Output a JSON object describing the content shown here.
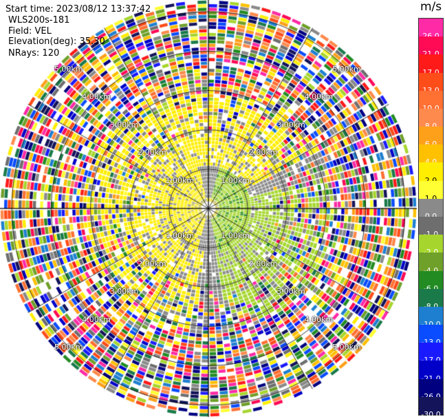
{
  "header": {
    "start_time": "Start time: 2023/08/12 13:37:42",
    "instrument": "WLS200s-181",
    "field": "Field: VEL",
    "elevation": "Elevation(deg): 35.30",
    "nrays": "NRays: 120"
  },
  "colorbar": {
    "unit": "m/s",
    "levels": [
      "26.0",
      "21.0",
      "17.0",
      "13.0",
      "10.0",
      "8.0",
      "6.0",
      "4.0",
      "2.0",
      "1.0",
      "0.0",
      "-1.0",
      "-2.0",
      "-4.0",
      "-6.0",
      "-8.0",
      "-10.0",
      "-13.0",
      "-17.0",
      "-21.0",
      "-26.0",
      "-30.0"
    ],
    "colors": [
      "#ff2aa6",
      "#ff0a55",
      "#ff1a1a",
      "#ff4d1a",
      "#ff7033",
      "#ff8a4d",
      "#ffa01a",
      "#ffc000",
      "#ffee00",
      "#ffff33",
      "#8a8a8a",
      "#6e6e6e",
      "#a6d62e",
      "#6fa02a",
      "#228b22",
      "#1a7a4a",
      "#1e7fd0",
      "#0a4cff",
      "#1a1aff",
      "#0000c8",
      "#000080",
      "#14145a"
    ]
  },
  "chart_data": {
    "type": "heatmap",
    "projection": "polar PPI",
    "field": "VEL",
    "units": "m/s",
    "nrays": 120,
    "range_rings_km": [
      1.0,
      2.0,
      3.0,
      4.0,
      5.0
    ],
    "ring_labels": [
      "1.00km",
      "2.00km",
      "3.00km",
      "4.00km",
      "5.00km"
    ],
    "color_scale_min": -30.0,
    "color_scale_max": 26.0
  }
}
